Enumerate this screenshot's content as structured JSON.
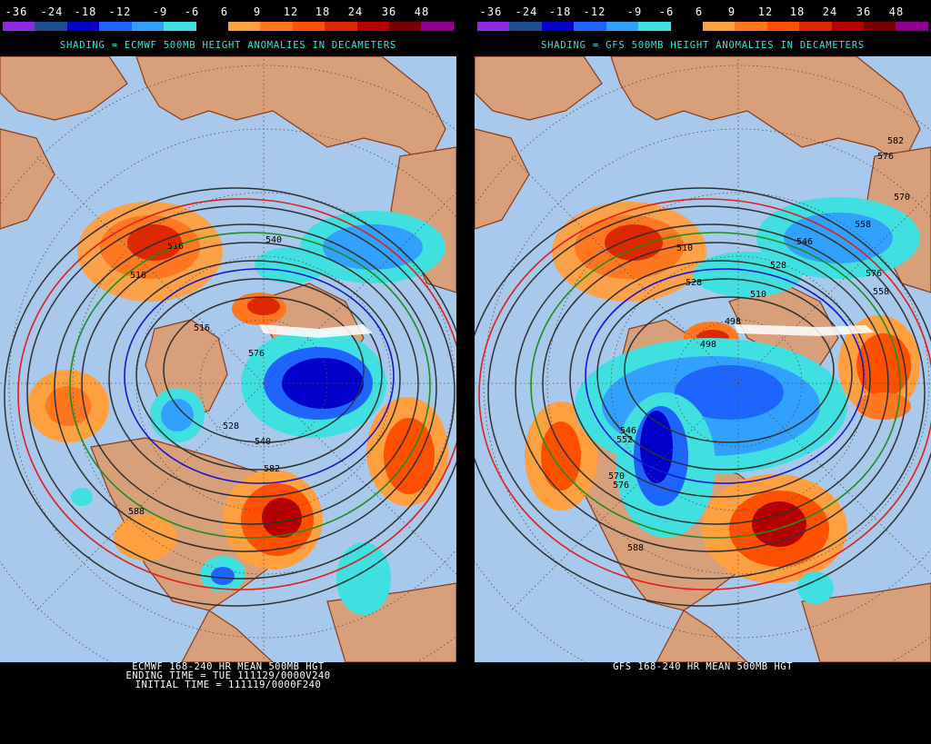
{
  "colorbar": {
    "labels": [
      "-36",
      "-24",
      "-18",
      "-12",
      "-9",
      "-6",
      "6",
      "9",
      "12",
      "18",
      "24",
      "36",
      "48"
    ],
    "colors": [
      "#8a2be2",
      "#1f4e8c",
      "#0000c8",
      "#1e64ff",
      "#32a0ff",
      "#40e0e0",
      "#000000",
      "#ffa040",
      "#ff7820",
      "#ff5000",
      "#e02800",
      "#b40000",
      "#7a0000",
      "#900090"
    ]
  },
  "left": {
    "title": "SHADING = ECMWF 500MB HEIGHT ANOMALIES IN DECAMETERS",
    "footer_lines": [
      "ECMWF 168-240 HR MEAN 500MB HGT",
      "ENDING TIME = TUE 111129/0000V240",
      "INITIAL TIME = 111119/0000F240"
    ],
    "contour_labels": [
      "516",
      "516",
      "516",
      "540",
      "576",
      "528",
      "540",
      "582",
      "588"
    ]
  },
  "right": {
    "title": "SHADING = GFS 500MB HEIGHT ANOMALIES IN DECAMETERS",
    "footer_lines": [
      "GFS 168-240 HR MEAN 500MB HGT"
    ],
    "contour_labels": [
      "582",
      "576",
      "570",
      "558",
      "546",
      "528",
      "510",
      "510",
      "498",
      "498",
      "528",
      "546",
      "552",
      "570",
      "576",
      "558",
      "576",
      "588"
    ]
  },
  "colors": {
    "ocean": "#a8c8ec",
    "land": "#d8a07a",
    "coast": "#8b3a1a",
    "accent_title": "#40e0d0"
  }
}
